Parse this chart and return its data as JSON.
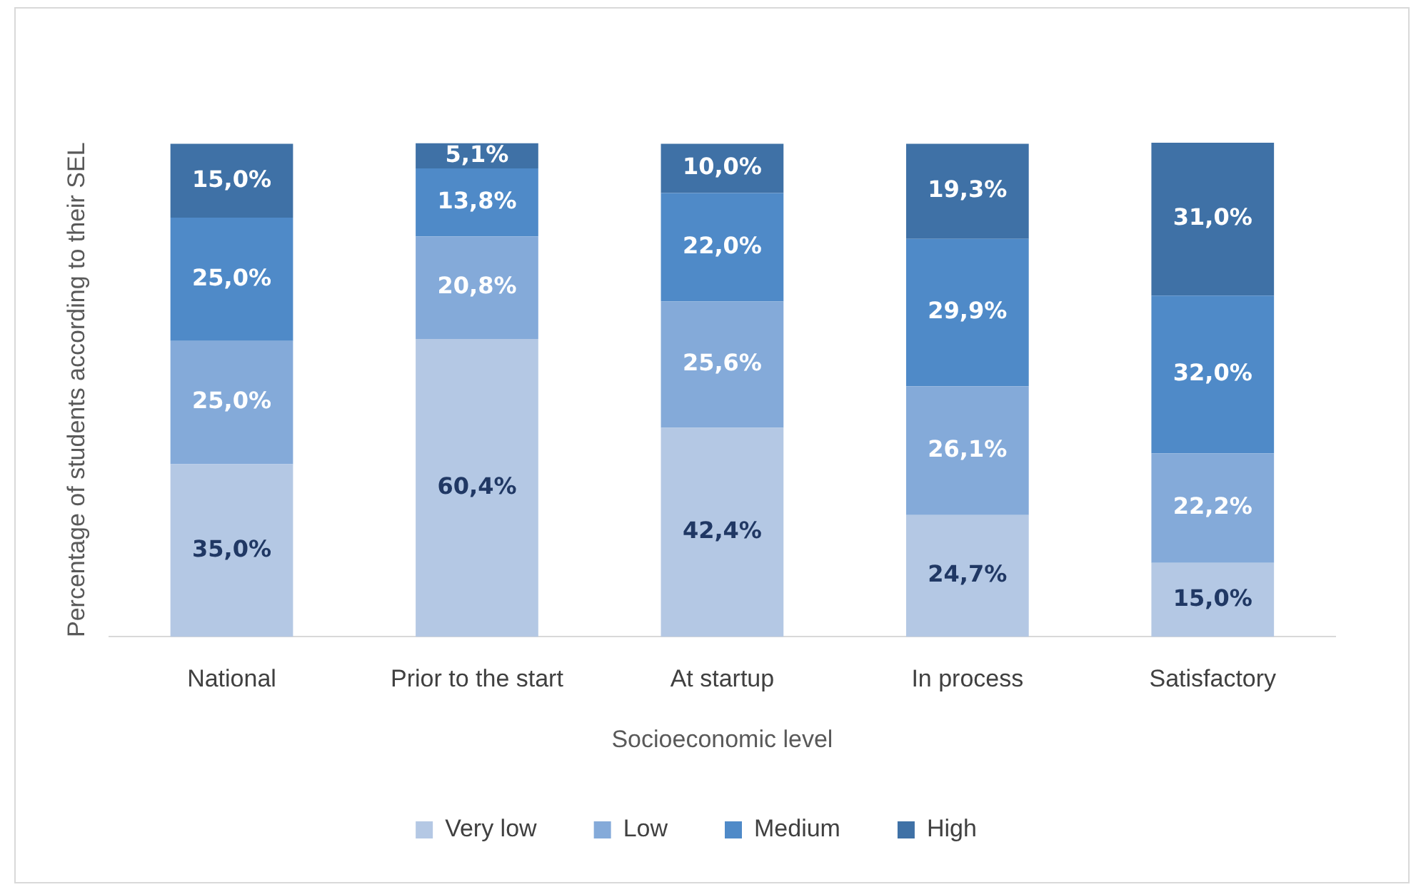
{
  "chart_data": {
    "type": "bar",
    "stacked": true,
    "ylabel": "Percentage of students according to their SEL",
    "xlabel": "Socioeconomic level",
    "legend": "bottom",
    "categories": [
      "National",
      "Prior to the start",
      "At startup",
      "In process",
      "Satisfactory"
    ],
    "series": [
      {
        "name": "Very low",
        "color": "#b4c8e4",
        "values": [
          35.0,
          60.4,
          42.4,
          24.7,
          15.0
        ],
        "value_labels": [
          "35,0%",
          "60,4%",
          "42,4%",
          "24,7%",
          "15,0%"
        ]
      },
      {
        "name": "Low",
        "color": "#84aad9",
        "values": [
          25.0,
          20.8,
          25.6,
          26.1,
          22.2
        ],
        "value_labels": [
          "25,0%",
          "20,8%",
          "25,6%",
          "26,1%",
          "22,2%"
        ]
      },
      {
        "name": "Medium",
        "color": "#4f8ac8",
        "values": [
          25.0,
          13.8,
          22.0,
          29.9,
          32.0
        ],
        "value_labels": [
          "25,0%",
          "13,8%",
          "22,0%",
          "29,9%",
          "32,0%"
        ]
      },
      {
        "name": "High",
        "color": "#3f71a6",
        "values": [
          15.0,
          5.1,
          10.0,
          19.3,
          31.0
        ],
        "value_labels": [
          "15,0%",
          "5,1%",
          "10,0%",
          "19,3%",
          "31,0%"
        ]
      }
    ]
  }
}
